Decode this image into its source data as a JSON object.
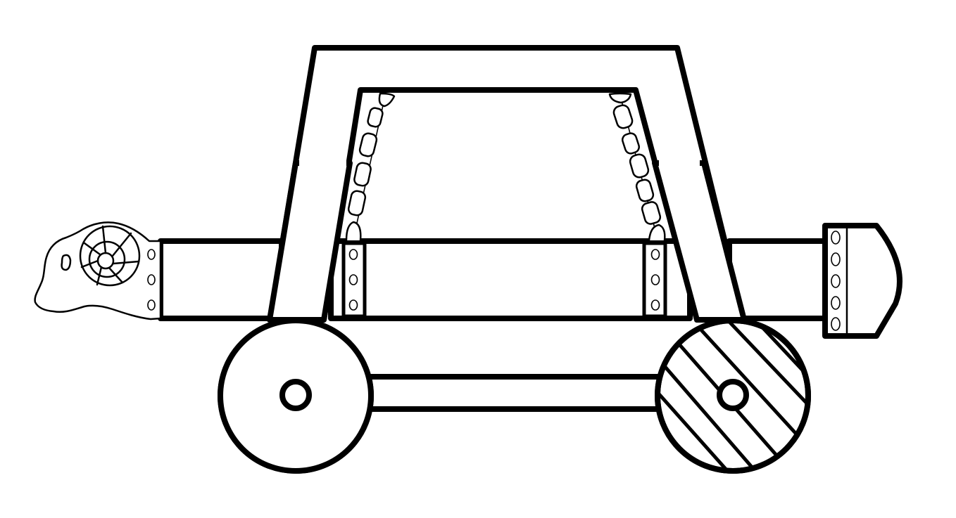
{
  "illustration": {
    "subject": "battering-ram",
    "style": "black-and-white line drawing",
    "colors": {
      "ink": "#000000",
      "paper": "#ffffff"
    },
    "parts": {
      "ram_head": "ram-head-icon",
      "frame": "trapezoid-frame",
      "chains": 2,
      "wheels": 2,
      "beam_end_cap_rivets": 5,
      "strap_rivets_each": 3
    }
  }
}
